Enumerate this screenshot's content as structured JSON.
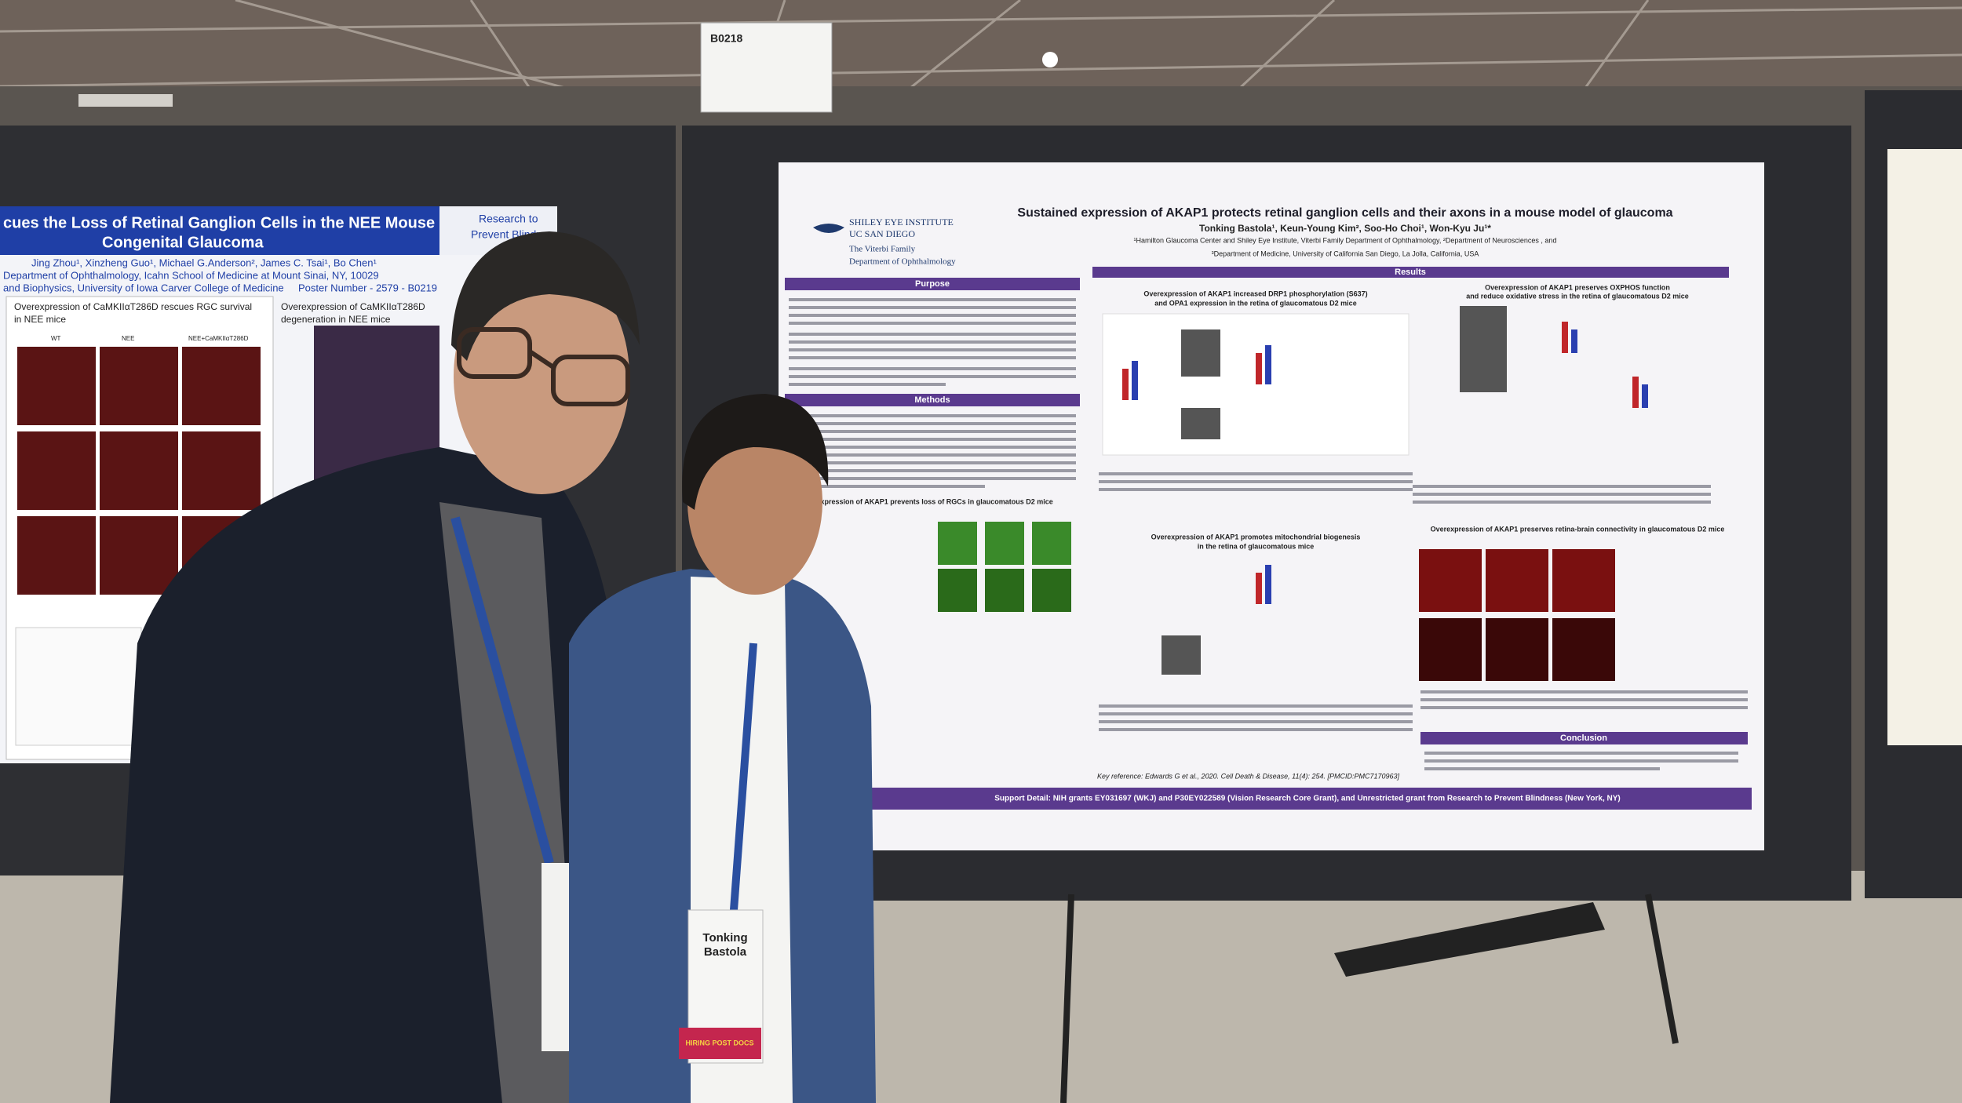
{
  "sign": {
    "booth": "B0218"
  },
  "main_poster": {
    "logo": {
      "institute": "SHILEY EYE INSTITUTE",
      "university": "UC SAN DIEGO",
      "family": "The Viterbi Family",
      "department": "Department of Ophthalmology"
    },
    "title": "Sustained expression of AKAP1 protects retinal ganglion cells and their axons in a mouse model of glaucoma",
    "authors": "Tonking Bastola¹, Keun-Young Kim², Soo-Ho Choi¹, Won-Kyu Ju¹*",
    "affiliations": [
      "¹Hamilton Glaucoma Center and Shiley Eye Institute, Viterbi Family Department of Ophthalmology, ²Department of Neurosciences , and",
      "³Department of Medicine, University of California San Diego, La Jolla, California,  USA"
    ],
    "sections": {
      "purpose": "Purpose",
      "methods": "Methods",
      "results": "Results",
      "conclusion": "Conclusion"
    },
    "figure_headings": [
      "Overexpression of AKAP1 increased DRP1 phosphorylation (S637)",
      "and OPA1 expression in the retina of glaucomatous D2 mice",
      "Overexpression of AKAP1 preserves OXPHOS function",
      "and reduce oxidative stress in the retina of glaucomatous D2 mice",
      "Overexpression of AKAP1 promotes mitochondrial biogenesis",
      "in the retina of glaucomatous mice",
      "Overexpression of AKAP1 prevents loss of RGCs in glaucomatous D2 mice",
      "Overexpression of AKAP1 preserves retina-brain connectivity in glaucomatous D2 mice"
    ],
    "key_reference": "Key reference:  Edwards G et al., 2020. Cell Death & Disease, 11(4): 254. [PMCID:PMC7170963]",
    "support": "Support Detail: NIH grants EY031697 (WKJ) and P30EY022589 (Vision Research Core Grant), and Unrestricted grant from Research to Prevent Blindness (New York, NY)"
  },
  "left_poster": {
    "title": [
      "cues the Loss of Retinal Ganglion Cells in the NEE Mouse Model of",
      "Congenital Glaucoma"
    ],
    "logo": [
      "Research to",
      "Prevent Blindness"
    ],
    "authors": [
      "Jing Zhou¹, Xinzheng Guo¹, Michael G.Anderson², James C. Tsai¹, Bo Chen¹",
      "Department of Ophthalmology, Icahn School of Medicine at Mount Sinai, NY, 10029",
      "and Biophysics, University of Iowa Carver College of Medicine"
    ],
    "poster_number": "Poster Number - 2579 - B0219",
    "panel_heading": [
      "Overexpression of CaMKIIαT286D rescues RGC survival",
      "in NEE mice"
    ],
    "panel_heading_2": [
      "Overexpression of CaMKIIαT286D",
      "degeneration in NEE mice"
    ],
    "columns": [
      "WT",
      "NEE",
      "NEE+CaMKIIαT286D"
    ]
  },
  "badge": {
    "first_name": "Tonking",
    "last_name": "Bastola",
    "ribbon": "HIRING POST DOCS"
  }
}
